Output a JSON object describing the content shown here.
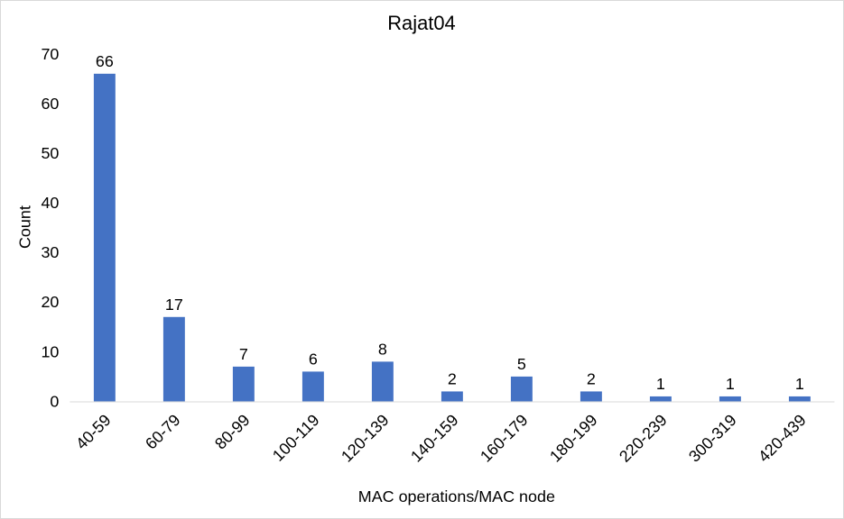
{
  "chart_data": {
    "type": "bar",
    "title": "Rajat04",
    "xlabel": "MAC operations/MAC node",
    "ylabel": "Count",
    "categories": [
      "40-59",
      "60-79",
      "80-99",
      "100-119",
      "120-139",
      "140-159",
      "160-179",
      "180-199",
      "220-239",
      "300-319",
      "420-439"
    ],
    "values": [
      66,
      17,
      7,
      6,
      8,
      2,
      5,
      2,
      1,
      1,
      1
    ],
    "ylim": [
      0,
      70
    ],
    "yticks": [
      0,
      10,
      20,
      30,
      40,
      50,
      60,
      70
    ],
    "data_labels": true,
    "grid": false,
    "legend": "none",
    "bar_color": "#4472C4"
  }
}
